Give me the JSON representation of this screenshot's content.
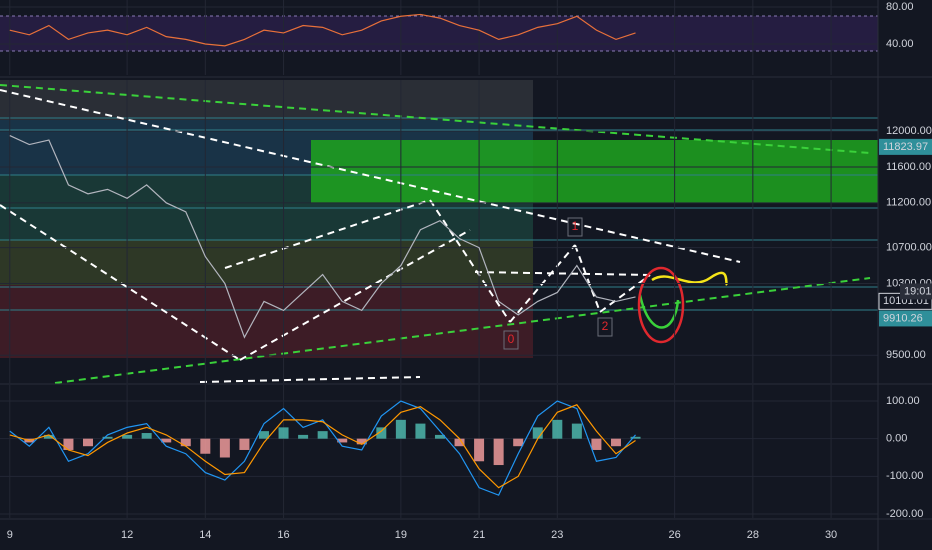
{
  "chart_data": [
    {
      "type": "line",
      "color": "#e8703a",
      "x": [
        9,
        9.5,
        10,
        10.5,
        11,
        11.5,
        12,
        12.5,
        13,
        13.5,
        14,
        14.5,
        15,
        15.5,
        16,
        16.5,
        17,
        17.5,
        18,
        18.5,
        19,
        19.5,
        20,
        20.5,
        21,
        21.5,
        22,
        22.5,
        23,
        23.5,
        24,
        24.5,
        25
      ],
      "values": [
        55,
        50,
        60,
        45,
        52,
        55,
        50,
        58,
        48,
        45,
        40,
        38,
        45,
        55,
        52,
        60,
        58,
        50,
        55,
        65,
        70,
        72,
        68,
        60,
        55,
        45,
        50,
        58,
        62,
        70,
        55,
        45,
        52
      ],
      "ylim": [
        6.5,
        87.6
      ],
      "yticks": [
        {
          "value": 40,
          "label": "40.00"
        },
        {
          "value": 80,
          "label": "80.00"
        }
      ]
    },
    {
      "type": "line",
      "color": "#b2b5be",
      "x": [
        9,
        9.5,
        10,
        10.5,
        11,
        11.5,
        12,
        12.5,
        13,
        13.5,
        14,
        14.5,
        15,
        15.5,
        16,
        16.5,
        17,
        17.5,
        18,
        18.5,
        19,
        19.5,
        20,
        20.5,
        21,
        21.5,
        22,
        22.5,
        23,
        23.5,
        24,
        24.5,
        25
      ],
      "values": [
        11950,
        11850,
        11900,
        11400,
        11300,
        11350,
        11250,
        11400,
        11200,
        11100,
        10600,
        10300,
        9700,
        10100,
        10000,
        10200,
        10400,
        10100,
        10000,
        10300,
        10500,
        10900,
        11000,
        10800,
        10700,
        10100,
        9950,
        10100,
        10200,
        10500,
        10150,
        10100,
        10150
      ],
      "xlim": [
        8.75,
        31.2
      ],
      "xticks": [
        9,
        12,
        14,
        16,
        19,
        21,
        23,
        26,
        28,
        30
      ],
      "ylim": [
        9190,
        12570
      ],
      "yticks": [
        {
          "value": 9500,
          "label": "9500.00"
        },
        {
          "value": 10300,
          "label": "10300.00"
        },
        {
          "value": 10700,
          "label": "10700.00"
        },
        {
          "value": 11200,
          "label": "11200.00"
        },
        {
          "value": 11600,
          "label": "11600.00"
        },
        {
          "value": 12000,
          "label": "12000.00"
        }
      ],
      "price_labels": [
        11823.97,
        10101.01,
        9910.26
      ],
      "countdown": "19:01",
      "annotations": [
        "0",
        "1",
        "2"
      ]
    },
    {
      "type": "bar",
      "up_color": "#4db6ac",
      "down_color": "#ef9a9a",
      "x": [
        9,
        9.5,
        10,
        10.5,
        11,
        11.5,
        12,
        12.5,
        13,
        13.5,
        14,
        14.5,
        15,
        15.5,
        16,
        16.5,
        17,
        17.5,
        18,
        18.5,
        19,
        19.5,
        20,
        20.5,
        21,
        21.5,
        22,
        22.5,
        23,
        23.5,
        24,
        24.5,
        25
      ],
      "values": [
        0,
        -10,
        10,
        -30,
        -20,
        5,
        10,
        15,
        -10,
        -20,
        -40,
        -50,
        -30,
        20,
        30,
        10,
        20,
        -10,
        -15,
        30,
        50,
        40,
        10,
        -20,
        -60,
        -70,
        -20,
        30,
        50,
        40,
        -30,
        -20,
        5
      ],
      "lines": [
        {
          "color": "#2196f3",
          "values": [
            20,
            -20,
            30,
            -60,
            -40,
            10,
            30,
            40,
            -20,
            -40,
            -90,
            -110,
            -60,
            40,
            80,
            30,
            50,
            -20,
            -30,
            60,
            100,
            80,
            20,
            -40,
            -130,
            -150,
            -40,
            60,
            100,
            80,
            -60,
            -50,
            10
          ]
        },
        {
          "color": "#ff9800",
          "values": [
            10,
            -5,
            10,
            -30,
            -45,
            -10,
            15,
            30,
            10,
            -20,
            -60,
            -95,
            -90,
            -10,
            50,
            50,
            45,
            10,
            -15,
            20,
            70,
            85,
            50,
            0,
            -80,
            -130,
            -100,
            0,
            70,
            90,
            20,
            -40,
            -5
          ]
        }
      ],
      "ylim": [
        -210.6,
        142.5
      ],
      "yticks": [
        {
          "value": -200,
          "label": "-200.00"
        },
        {
          "value": -100,
          "label": "-100.00"
        },
        {
          "value": 0,
          "label": "0.00"
        },
        {
          "value": 100,
          "label": "100.00"
        }
      ]
    }
  ]
}
